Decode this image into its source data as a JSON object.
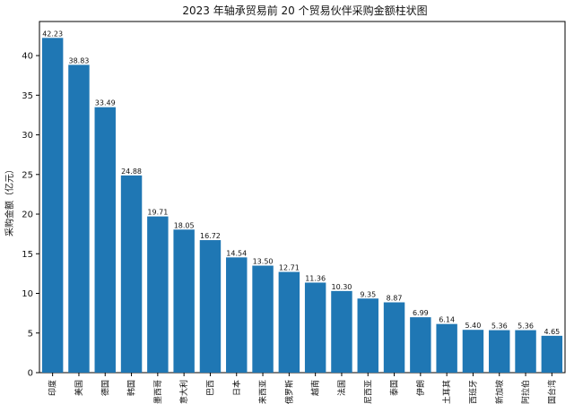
{
  "chart_data": {
    "type": "bar",
    "title": "2023 年轴承贸易前 20 个贸易伙伴采购金额柱状图",
    "xlabel": "",
    "ylabel": "采购金额（亿元）",
    "ylim": [
      0,
      44.3
    ],
    "yticks": [
      0,
      5,
      10,
      15,
      20,
      25,
      30,
      35,
      40
    ],
    "categories": [
      "印度",
      "美国",
      "德国",
      "韩国",
      "墨西哥",
      "意大利",
      "巴西",
      "日本",
      "来西亚",
      "俄罗斯",
      "越南",
      "法国",
      "尼西亚",
      "泰国",
      "伊朗",
      "土耳其",
      "西班牙",
      "新加坡",
      "阿拉伯",
      "国台湾"
    ],
    "values": [
      42.23,
      38.83,
      33.49,
      24.88,
      19.71,
      18.05,
      16.72,
      14.54,
      13.5,
      12.71,
      11.36,
      10.3,
      9.35,
      8.87,
      6.99,
      6.14,
      5.4,
      5.36,
      5.36,
      4.65
    ],
    "value_labels": [
      "42.23",
      "38.83",
      "33.49",
      "24.88",
      "19.71",
      "18.05",
      "16.72",
      "14.54",
      "13.50",
      "12.71",
      "11.36",
      "10.30",
      "9.35",
      "8.87",
      "6.99",
      "6.14",
      "5.40",
      "5.36",
      "5.36",
      "4.65"
    ],
    "bar_color": "#1f77b4",
    "grid": false,
    "legend": "none"
  }
}
